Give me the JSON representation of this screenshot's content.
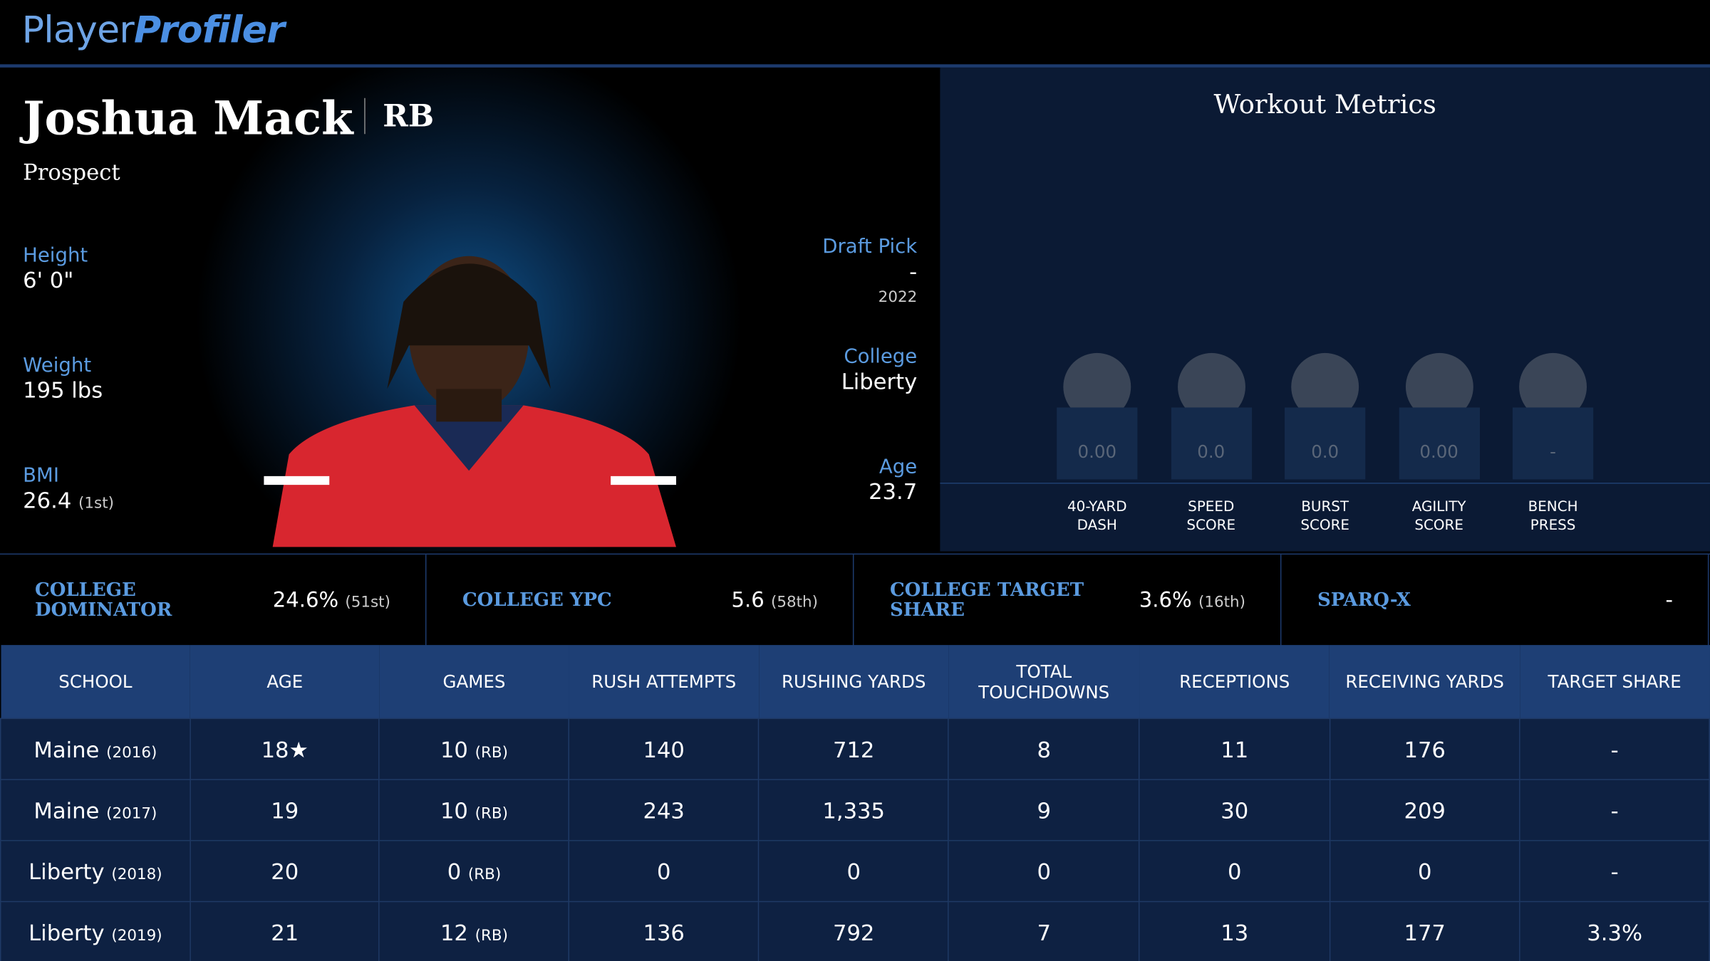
{
  "header": {
    "logo_first": "Player",
    "logo_second": "Profiler"
  },
  "player": {
    "name": "Joshua Mack",
    "position": "RB",
    "status": "Prospect"
  },
  "bio_left": [
    {
      "label": "Height",
      "value": "6' 0\""
    },
    {
      "label": "Weight",
      "value": "195 lbs"
    },
    {
      "label": "BMI",
      "value": "26.4",
      "rank": "(1st)"
    }
  ],
  "bio_right": [
    {
      "label": "Draft Pick",
      "value": "-",
      "sub": "2022"
    },
    {
      "label": "College",
      "value": "Liberty"
    },
    {
      "label": "Age",
      "value": "23.7"
    }
  ],
  "workout": {
    "title": "Workout Metrics",
    "metrics": [
      {
        "label": "40-YARD DASH",
        "value": "0.00"
      },
      {
        "label": "SPEED SCORE",
        "value": "0.0"
      },
      {
        "label": "BURST SCORE",
        "value": "0.0"
      },
      {
        "label": "AGILITY SCORE",
        "value": "0.00"
      },
      {
        "label": "BENCH PRESS",
        "value": "-"
      }
    ]
  },
  "stats_bar": [
    {
      "label": "COLLEGE DOMINATOR",
      "value": "24.6%",
      "rank": "(51st)"
    },
    {
      "label": "COLLEGE YPC",
      "value": "5.6",
      "rank": "(58th)"
    },
    {
      "label": "COLLEGE TARGET SHARE",
      "value": "3.6%",
      "rank": "(16th)"
    },
    {
      "label": "SPARQ-X",
      "value": "-"
    }
  ],
  "table": {
    "columns": [
      "SCHOOL",
      "AGE",
      "GAMES",
      "RUSH ATTEMPTS",
      "RUSHING YARDS",
      "TOTAL TOUCHDOWNS",
      "RECEPTIONS",
      "RECEIVING YARDS",
      "TARGET SHARE"
    ],
    "rows": [
      [
        {
          "main": "Maine",
          "sub": "(2016)"
        },
        "18★",
        {
          "main": "10",
          "sub": "(RB)"
        },
        "140",
        "712",
        "8",
        "11",
        "176",
        "-"
      ],
      [
        {
          "main": "Maine",
          "sub": "(2017)"
        },
        "19",
        {
          "main": "10",
          "sub": "(RB)"
        },
        "243",
        "1,335",
        "9",
        "30",
        "209",
        "-"
      ],
      [
        {
          "main": "Liberty",
          "sub": "(2018)"
        },
        "20",
        {
          "main": "0",
          "sub": "(RB)"
        },
        "0",
        "0",
        "0",
        "0",
        "0",
        "-"
      ],
      [
        {
          "main": "Liberty",
          "sub": "(2019)"
        },
        "21",
        {
          "main": "12",
          "sub": "(RB)"
        },
        "136",
        "792",
        "7",
        "13",
        "177",
        "3.3%"
      ]
    ]
  }
}
